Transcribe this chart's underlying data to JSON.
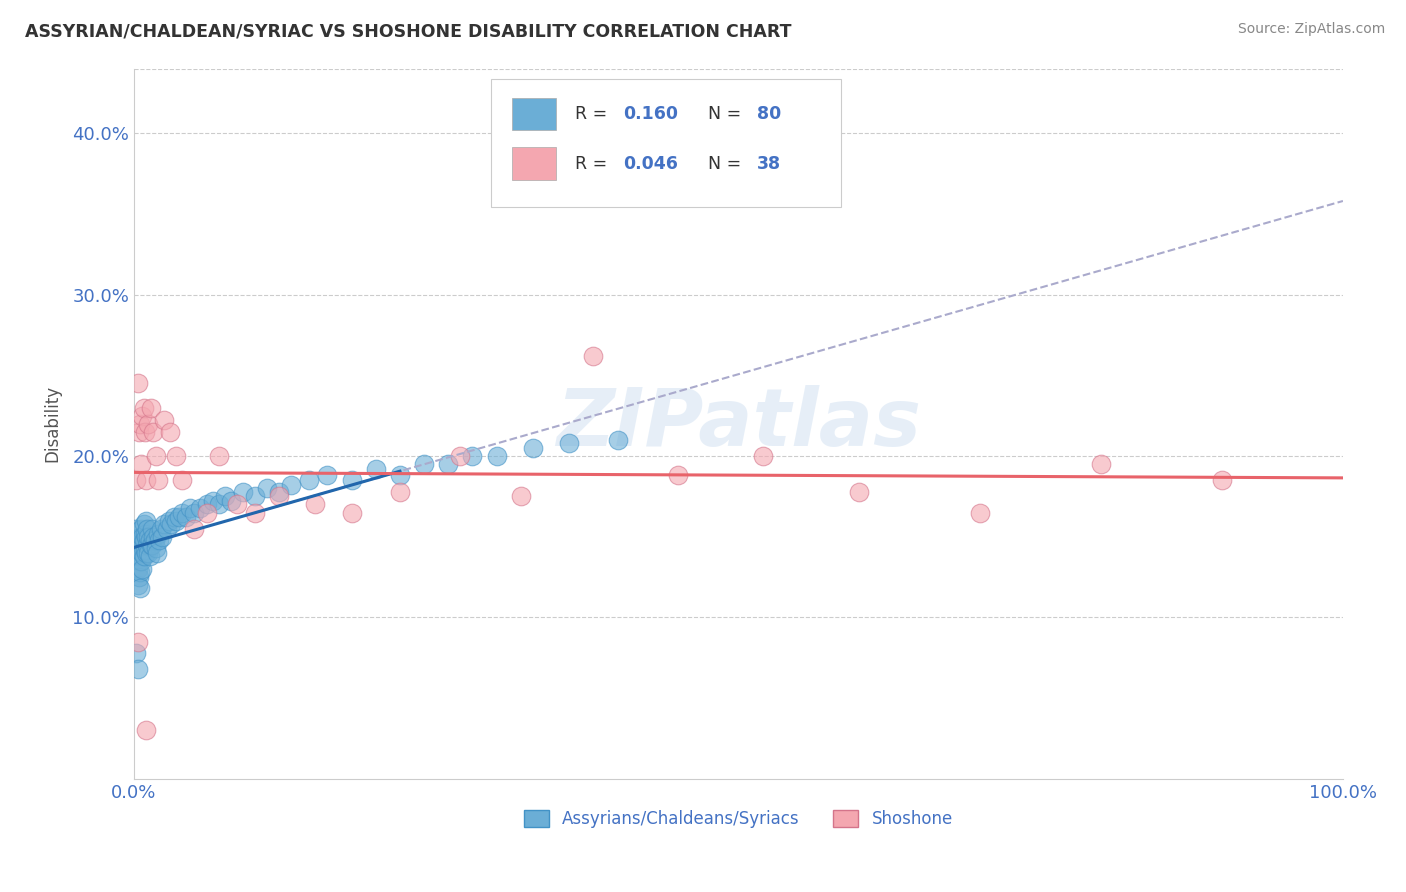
{
  "title": "ASSYRIAN/CHALDEAN/SYRIAC VS SHOSHONE DISABILITY CORRELATION CHART",
  "source": "Source: ZipAtlas.com",
  "ylabel": "Disability",
  "legend_label_1": "Assyrians/Chaldeans/Syriacs",
  "legend_label_2": "Shoshone",
  "R1": 0.16,
  "N1": 80,
  "R2": 0.046,
  "N2": 38,
  "color1": "#6baed6",
  "color1_edge": "#4292c6",
  "color2": "#f4a7b0",
  "color2_edge": "#d4748a",
  "color_line1": "#2166ac",
  "color_line2": "#e8636a",
  "color_dash": "#aaaacc",
  "xlim": [
    0.0,
    1.0
  ],
  "ylim": [
    0.0,
    0.44
  ],
  "x_ticks": [
    0.0,
    0.25,
    0.5,
    0.75,
    1.0
  ],
  "x_tick_labels": [
    "0.0%",
    "",
    "",
    "",
    "100.0%"
  ],
  "y_ticks": [
    0.1,
    0.2,
    0.3,
    0.4
  ],
  "y_tick_labels": [
    "10.0%",
    "20.0%",
    "30.0%",
    "40.0%"
  ],
  "watermark": "ZIPatlas",
  "background_color": "#ffffff",
  "grid_color": "#cccccc",
  "blue_scatter_x": [
    0.001,
    0.002,
    0.002,
    0.003,
    0.003,
    0.003,
    0.004,
    0.004,
    0.004,
    0.005,
    0.005,
    0.005,
    0.005,
    0.006,
    0.006,
    0.006,
    0.007,
    0.007,
    0.007,
    0.008,
    0.008,
    0.008,
    0.009,
    0.009,
    0.01,
    0.01,
    0.01,
    0.011,
    0.011,
    0.012,
    0.012,
    0.013,
    0.013,
    0.014,
    0.015,
    0.015,
    0.016,
    0.017,
    0.018,
    0.019,
    0.02,
    0.021,
    0.022,
    0.023,
    0.025,
    0.027,
    0.029,
    0.031,
    0.033,
    0.035,
    0.037,
    0.04,
    0.043,
    0.046,
    0.05,
    0.055,
    0.06,
    0.065,
    0.07,
    0.075,
    0.08,
    0.09,
    0.1,
    0.11,
    0.12,
    0.13,
    0.145,
    0.16,
    0.18,
    0.2,
    0.22,
    0.24,
    0.26,
    0.28,
    0.3,
    0.33,
    0.36,
    0.4,
    0.002,
    0.003
  ],
  "blue_scatter_y": [
    0.155,
    0.148,
    0.138,
    0.145,
    0.13,
    0.12,
    0.142,
    0.135,
    0.125,
    0.15,
    0.138,
    0.128,
    0.118,
    0.155,
    0.145,
    0.135,
    0.15,
    0.14,
    0.13,
    0.158,
    0.148,
    0.138,
    0.152,
    0.142,
    0.16,
    0.15,
    0.14,
    0.155,
    0.145,
    0.15,
    0.14,
    0.148,
    0.138,
    0.145,
    0.155,
    0.145,
    0.15,
    0.148,
    0.143,
    0.14,
    0.152,
    0.148,
    0.155,
    0.15,
    0.158,
    0.155,
    0.16,
    0.158,
    0.162,
    0.16,
    0.162,
    0.165,
    0.162,
    0.168,
    0.165,
    0.168,
    0.17,
    0.172,
    0.17,
    0.175,
    0.172,
    0.178,
    0.175,
    0.18,
    0.178,
    0.182,
    0.185,
    0.188,
    0.185,
    0.192,
    0.188,
    0.195,
    0.195,
    0.2,
    0.2,
    0.205,
    0.208,
    0.21,
    0.078,
    0.068
  ],
  "pink_scatter_x": [
    0.002,
    0.003,
    0.004,
    0.005,
    0.006,
    0.007,
    0.008,
    0.009,
    0.01,
    0.012,
    0.014,
    0.016,
    0.018,
    0.02,
    0.025,
    0.03,
    0.035,
    0.04,
    0.05,
    0.06,
    0.07,
    0.085,
    0.1,
    0.12,
    0.15,
    0.18,
    0.22,
    0.27,
    0.32,
    0.38,
    0.45,
    0.52,
    0.6,
    0.7,
    0.8,
    0.9,
    0.003,
    0.01
  ],
  "pink_scatter_y": [
    0.185,
    0.245,
    0.215,
    0.22,
    0.195,
    0.225,
    0.23,
    0.215,
    0.185,
    0.22,
    0.23,
    0.215,
    0.2,
    0.185,
    0.222,
    0.215,
    0.2,
    0.185,
    0.155,
    0.165,
    0.2,
    0.17,
    0.165,
    0.175,
    0.17,
    0.165,
    0.178,
    0.2,
    0.175,
    0.262,
    0.188,
    0.2,
    0.178,
    0.165,
    0.195,
    0.185,
    0.085,
    0.03
  ]
}
